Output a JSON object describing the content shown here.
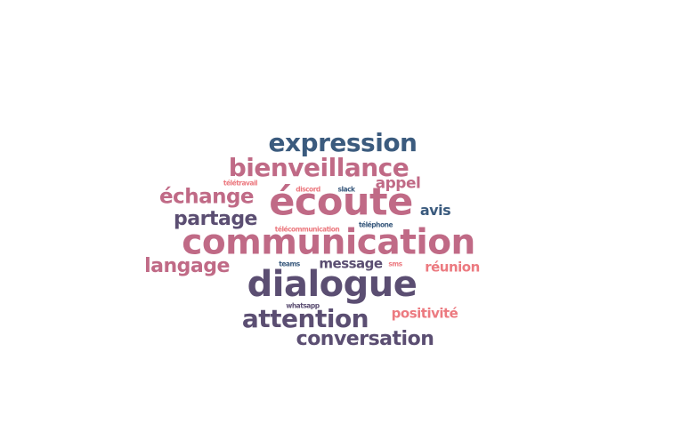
{
  "word_cloud": {
    "words": [
      {
        "id": "communication",
        "text": "communication",
        "color": "#c06a86"
      },
      {
        "id": "ecoute",
        "text": "écoute",
        "color": "#c06a86"
      },
      {
        "id": "dialogue",
        "text": "dialogue",
        "color": "#5b4e72"
      },
      {
        "id": "expression",
        "text": "expression",
        "color": "#3b5b7e"
      },
      {
        "id": "bienveillance",
        "text": "bienveillance",
        "color": "#c06a86"
      },
      {
        "id": "attention",
        "text": "attention",
        "color": "#5b4e72"
      },
      {
        "id": "conversation",
        "text": "conversation",
        "color": "#5b4e72"
      },
      {
        "id": "echange",
        "text": "échange",
        "color": "#c06a86"
      },
      {
        "id": "partage",
        "text": "partage",
        "color": "#5b4e72"
      },
      {
        "id": "langage",
        "text": "langage",
        "color": "#c06a86"
      },
      {
        "id": "appel",
        "text": "appel",
        "color": "#c06a86"
      },
      {
        "id": "avis",
        "text": "avis",
        "color": "#3b5b7e"
      },
      {
        "id": "message",
        "text": "message",
        "color": "#5b4e72"
      },
      {
        "id": "reunion",
        "text": "réunion",
        "color": "#ec7a80"
      },
      {
        "id": "positivite",
        "text": "positivité",
        "color": "#ec7a80"
      },
      {
        "id": "teletravail",
        "text": "télétravail",
        "color": "#ec7a80"
      },
      {
        "id": "discord",
        "text": "discord",
        "color": "#ec7a80"
      },
      {
        "id": "slack",
        "text": "slack",
        "color": "#3b5b7e"
      },
      {
        "id": "telecommunication",
        "text": "télécommunication",
        "color": "#ec7a80"
      },
      {
        "id": "telephone",
        "text": "téléphone",
        "color": "#3b5b7e"
      },
      {
        "id": "teams",
        "text": "teams",
        "color": "#3b5b7e"
      },
      {
        "id": "sms",
        "text": "sms",
        "color": "#ec7a80"
      },
      {
        "id": "whatsapp",
        "text": "whatsapp",
        "color": "#5b4e72"
      }
    ]
  }
}
